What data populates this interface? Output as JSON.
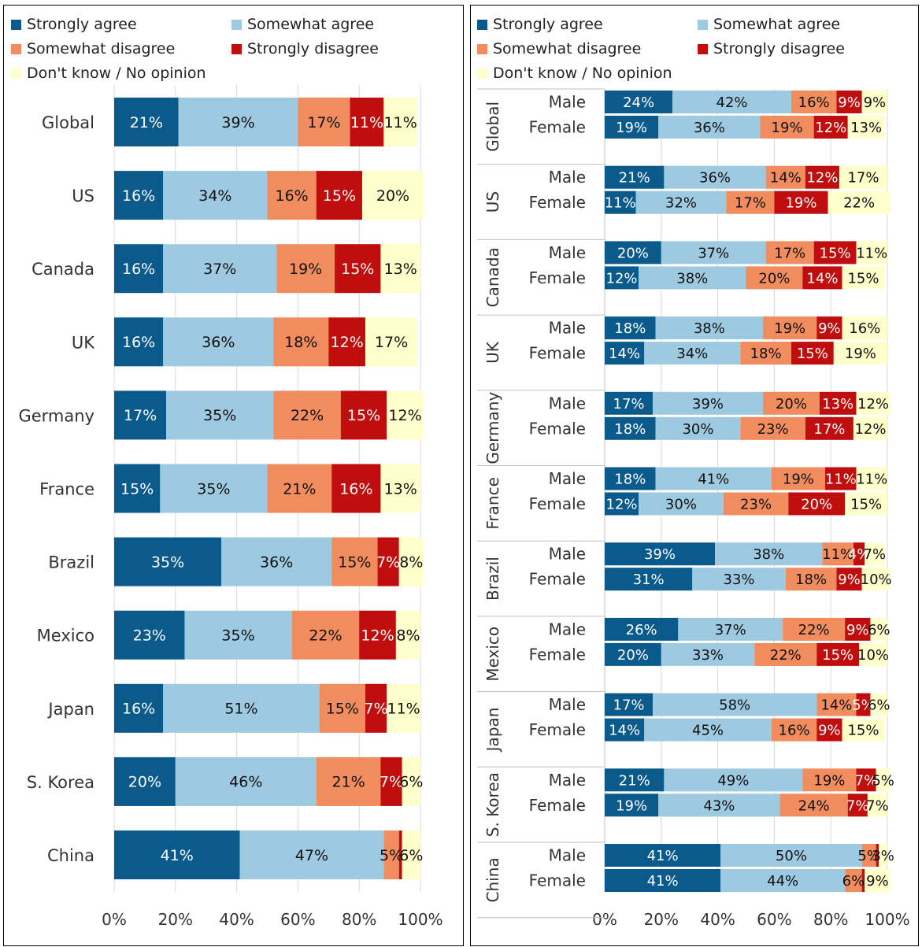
{
  "legend": [
    {
      "label": "Strongly agree",
      "color": "#0b5a8c"
    },
    {
      "label": "Somewhat agree",
      "color": "#9ecae1"
    },
    {
      "label": "Somewhat disagree",
      "color": "#f08c5e"
    },
    {
      "label": "Strongly disagree",
      "color": "#c00d0d"
    },
    {
      "label": "Don't know / No opinion",
      "color": "#ffffcc"
    }
  ],
  "chart_data": [
    {
      "type": "bar",
      "orientation": "horizontal",
      "stacked": true,
      "categories": [
        "Global",
        "US",
        "Canada",
        "UK",
        "Germany",
        "France",
        "Brazil",
        "Mexico",
        "Japan",
        "S. Korea",
        "China"
      ],
      "series": [
        {
          "name": "Strongly agree",
          "values": [
            21,
            16,
            16,
            16,
            17,
            15,
            35,
            23,
            16,
            20,
            41
          ]
        },
        {
          "name": "Somewhat agree",
          "values": [
            39,
            34,
            37,
            36,
            35,
            35,
            36,
            35,
            51,
            46,
            47
          ]
        },
        {
          "name": "Somewhat disagree",
          "values": [
            17,
            16,
            19,
            18,
            22,
            21,
            15,
            22,
            15,
            21,
            5
          ]
        },
        {
          "name": "Strongly disagree",
          "values": [
            11,
            15,
            15,
            12,
            15,
            16,
            7,
            12,
            7,
            7,
            1
          ]
        },
        {
          "name": "Don't know / No opinion",
          "values": [
            11,
            20,
            13,
            17,
            12,
            13,
            8,
            8,
            11,
            6,
            6
          ]
        }
      ],
      "xlim": [
        0,
        100
      ],
      "xticks": [
        "0%",
        "20%",
        "40%",
        "60%",
        "80%",
        "100%"
      ],
      "grid": true,
      "legend_position": "top"
    },
    {
      "type": "bar",
      "orientation": "horizontal",
      "stacked": true,
      "groups": [
        "Global",
        "US",
        "Canada",
        "UK",
        "Germany",
        "France",
        "Brazil",
        "Mexico",
        "Japan",
        "S. Korea",
        "China"
      ],
      "subcategories": [
        "Male",
        "Female"
      ],
      "series": [
        {
          "name": "Strongly agree",
          "values": [
            [
              24,
              19
            ],
            [
              21,
              11
            ],
            [
              20,
              12
            ],
            [
              18,
              14
            ],
            [
              17,
              18
            ],
            [
              18,
              12
            ],
            [
              39,
              31
            ],
            [
              26,
              20
            ],
            [
              17,
              14
            ],
            [
              21,
              19
            ],
            [
              41,
              41
            ]
          ]
        },
        {
          "name": "Somewhat agree",
          "values": [
            [
              42,
              36
            ],
            [
              36,
              32
            ],
            [
              37,
              38
            ],
            [
              38,
              34
            ],
            [
              39,
              30
            ],
            [
              41,
              30
            ],
            [
              38,
              33
            ],
            [
              37,
              33
            ],
            [
              58,
              45
            ],
            [
              49,
              43
            ],
            [
              50,
              44
            ]
          ]
        },
        {
          "name": "Somewhat disagree",
          "values": [
            [
              16,
              19
            ],
            [
              14,
              17
            ],
            [
              17,
              20
            ],
            [
              19,
              18
            ],
            [
              20,
              23
            ],
            [
              19,
              23
            ],
            [
              11,
              18
            ],
            [
              22,
              22
            ],
            [
              14,
              16
            ],
            [
              19,
              24
            ],
            [
              5,
              6
            ]
          ]
        },
        {
          "name": "Strongly disagree",
          "values": [
            [
              9,
              12
            ],
            [
              12,
              19
            ],
            [
              15,
              14
            ],
            [
              9,
              15
            ],
            [
              13,
              17
            ],
            [
              11,
              20
            ],
            [
              4,
              9
            ],
            [
              9,
              15
            ],
            [
              5,
              9
            ],
            [
              7,
              7
            ],
            [
              1,
              1
            ]
          ]
        },
        {
          "name": "Don't know / No opinion",
          "values": [
            [
              9,
              13
            ],
            [
              17,
              22
            ],
            [
              11,
              15
            ],
            [
              16,
              19
            ],
            [
              12,
              12
            ],
            [
              11,
              15
            ],
            [
              7,
              10
            ],
            [
              6,
              10
            ],
            [
              6,
              15
            ],
            [
              5,
              7
            ],
            [
              3,
              9
            ]
          ]
        }
      ],
      "xlim": [
        0,
        100
      ],
      "xticks": [
        "0%",
        "20%",
        "40%",
        "60%",
        "80%",
        "100%"
      ],
      "grid": true,
      "legend_position": "top"
    }
  ]
}
